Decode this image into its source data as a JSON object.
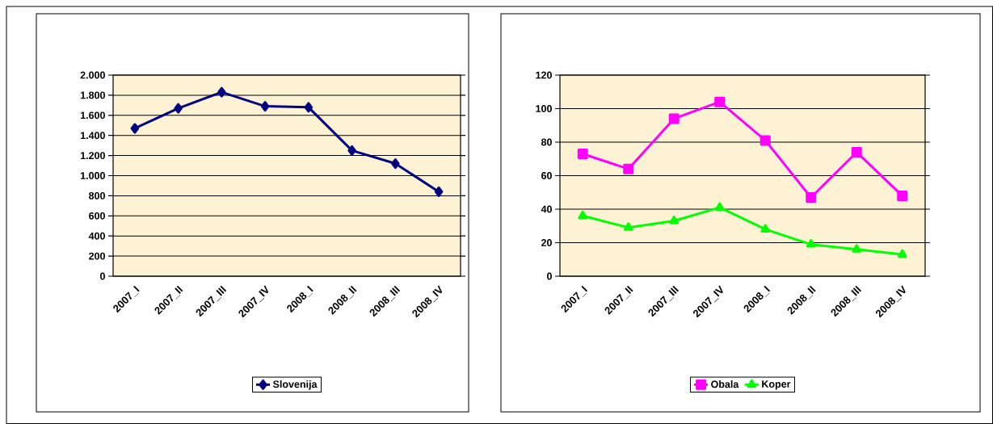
{
  "chart_data": [
    {
      "type": "line",
      "categories": [
        "2007_I",
        "2007_II",
        "2007_III",
        "2007_IV",
        "2008_I",
        "2008_II",
        "2008_III",
        "2008_IV"
      ],
      "series": [
        {
          "name": "Slovenija",
          "color": "#000080",
          "marker": "diamond",
          "values": [
            1470,
            1670,
            1830,
            1690,
            1680,
            1250,
            1120,
            840
          ]
        }
      ],
      "ylim": [
        0,
        2000
      ],
      "yticks": [
        0,
        200,
        400,
        600,
        800,
        {
          "value": 1000,
          "label": "1.000"
        },
        {
          "value": 1200,
          "label": "1.200"
        },
        {
          "value": 1400,
          "label": "1.400"
        },
        {
          "value": 1600,
          "label": "1.600"
        },
        {
          "value": 1800,
          "label": "1.800"
        },
        {
          "value": 2000,
          "label": "2.000"
        }
      ],
      "grid": "y",
      "legend": "bottom"
    },
    {
      "type": "line",
      "categories": [
        "2007_I",
        "2007_II",
        "2007_III",
        "2007_IV",
        "2008_I",
        "2008_II",
        "2008_III",
        "2008_IV"
      ],
      "series": [
        {
          "name": "Obala",
          "color": "#ff00ff",
          "marker": "square",
          "values": [
            73,
            64,
            94,
            104,
            81,
            47,
            74,
            48
          ]
        },
        {
          "name": "Koper",
          "color": "#00ff00",
          "marker": "triangle",
          "values": [
            36,
            29,
            33,
            41,
            28,
            19,
            16,
            13
          ]
        }
      ],
      "ylim": [
        0,
        120
      ],
      "yticks": [
        0,
        20,
        40,
        60,
        80,
        100,
        120
      ],
      "grid": "y",
      "legend": "bottom"
    }
  ]
}
